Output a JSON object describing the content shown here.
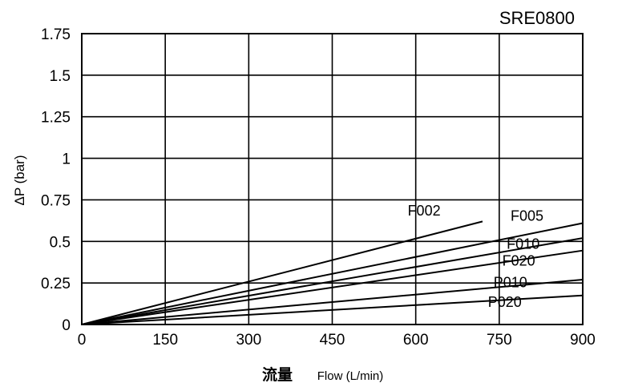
{
  "chart_data": {
    "type": "line",
    "title": "SRE0800",
    "ylabel": "ΔP (bar)",
    "xlabel_main": "流量",
    "xlabel_sub": "Flow (L/min)",
    "xlim": [
      0,
      900
    ],
    "ylim": [
      0,
      1.75
    ],
    "x_ticks": [
      0,
      150,
      300,
      450,
      600,
      750,
      900
    ],
    "x_tick_labels": [
      "0",
      "150",
      "300",
      "450",
      "600",
      "750",
      "900"
    ],
    "y_ticks": [
      0,
      0.25,
      0.5,
      0.75,
      1,
      1.25,
      1.5,
      1.75
    ],
    "y_tick_labels": [
      "0",
      "0.25",
      "0.5",
      "0.75",
      "1",
      "1.25",
      "1.5",
      "1.75"
    ],
    "grid": true,
    "series": [
      {
        "name": "F002",
        "x": [
          0,
          720
        ],
        "y": [
          0,
          0.62
        ]
      },
      {
        "name": "F005",
        "x": [
          0,
          900
        ],
        "y": [
          0,
          0.61
        ]
      },
      {
        "name": "F010",
        "x": [
          0,
          900
        ],
        "y": [
          0,
          0.52
        ]
      },
      {
        "name": "F020",
        "x": [
          0,
          900
        ],
        "y": [
          0,
          0.445
        ]
      },
      {
        "name": "P010",
        "x": [
          0,
          900
        ],
        "y": [
          0,
          0.27
        ]
      },
      {
        "name": "P020",
        "x": [
          0,
          900
        ],
        "y": [
          0,
          0.175
        ]
      }
    ],
    "series_labels": [
      {
        "name": "F002",
        "x": 615,
        "y": 0.655
      },
      {
        "name": "F005",
        "x": 800,
        "y": 0.625
      },
      {
        "name": "F010",
        "x": 793,
        "y": 0.455
      },
      {
        "name": "F020",
        "x": 785,
        "y": 0.355
      },
      {
        "name": "P010",
        "x": 770,
        "y": 0.225
      },
      {
        "name": "P020",
        "x": 760,
        "y": 0.105
      }
    ]
  }
}
